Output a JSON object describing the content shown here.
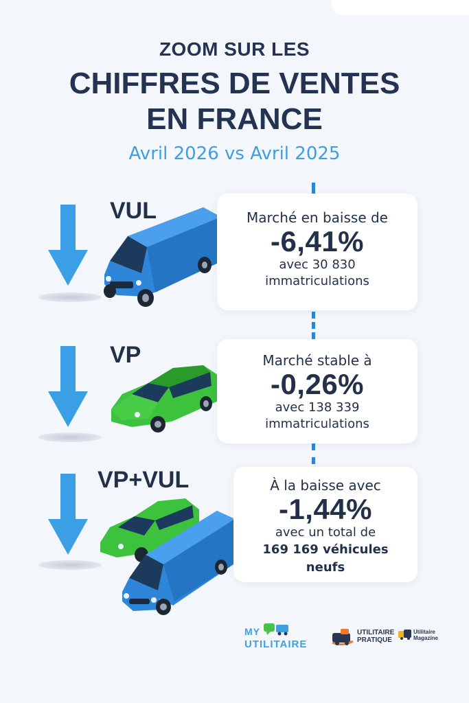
{
  "header": {
    "pre_title": "ZOOM SUR LES",
    "title_line1": "CHIFFRES DE VENTES",
    "title_line2": "EN FRANCE",
    "subtitle": "Avril 2026 vs Avril 2025"
  },
  "colors": {
    "title": "#253352",
    "subtitle": "#3f9ee0",
    "arrow": "#3b9fe6",
    "van": "#2f86d9",
    "car": "#3cc23c",
    "timeline": "#2f86d0",
    "background": "#f3f7fb"
  },
  "sections": [
    {
      "label": "VUL",
      "icon": "arrow-down-icon",
      "vehicle_icon": "van-icon",
      "lead": "Marché en baisse de",
      "percent": "-6,41%",
      "detail_line1": "avec 30 830",
      "detail_line2": "immatriculations"
    },
    {
      "label": "VP",
      "icon": "arrow-down-icon",
      "vehicle_icon": "car-icon",
      "lead": "Marché stable à",
      "percent": "-0,26%",
      "detail_line1": "avec 138 339",
      "detail_line2": "immatriculations"
    },
    {
      "label": "VP+VUL",
      "icon": "arrow-down-icon",
      "vehicle_icon": "car-and-van-icon",
      "lead": "À la baisse avec",
      "percent": "-1,44%",
      "detail_line1": "avec un total de",
      "detail_line2": "169 169 véhicules",
      "detail_line3": "neufs"
    }
  ],
  "logos": {
    "my_utilitaire_top": "MY",
    "my_utilitaire_bottom": "UTILITAIRE",
    "utilitaire_pratique_line1": "UTILITAIRE",
    "utilitaire_pratique_line2": "PRATIQUE",
    "utilitaire_magazine_line1": "Utilitaire",
    "utilitaire_magazine_line2": "Magazine"
  }
}
